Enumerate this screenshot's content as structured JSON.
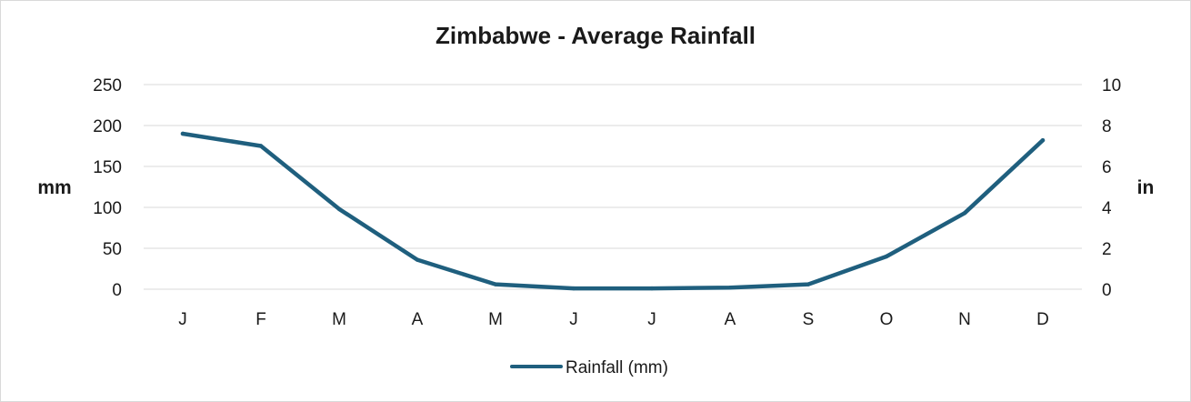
{
  "chart_data": {
    "type": "line",
    "title": "Zimbabwe - Average Rainfall",
    "categories": [
      "J",
      "F",
      "M",
      "A",
      "M",
      "J",
      "J",
      "A",
      "S",
      "O",
      "N",
      "D"
    ],
    "series": [
      {
        "name": "Rainfall (mm)",
        "values": [
          190,
          175,
          98,
          36,
          6,
          1,
          1,
          2,
          6,
          40,
          93,
          182
        ]
      }
    ],
    "ylabel": "mm",
    "ylim": [
      0,
      250
    ],
    "yticks": [
      0,
      50,
      100,
      150,
      200,
      250
    ],
    "y2label": "in",
    "y2lim": [
      0,
      10
    ],
    "y2ticks": [
      0,
      2,
      4,
      6,
      8,
      10
    ],
    "grid": true,
    "legend_position": "bottom",
    "colors": {
      "series": "#1f5f7e",
      "grid": "#d9d9d9"
    }
  }
}
